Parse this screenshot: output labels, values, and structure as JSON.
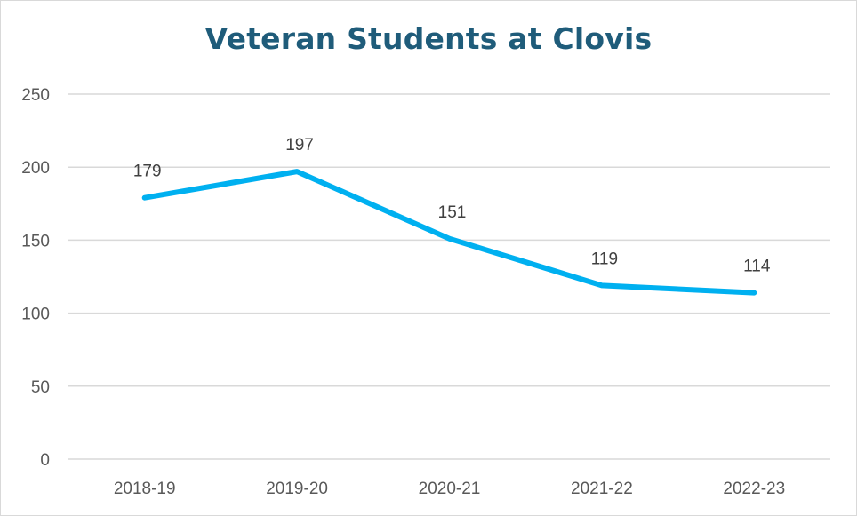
{
  "chart_data": {
    "type": "line",
    "title": "Veteran Students at Clovis",
    "xlabel": "",
    "ylabel": "",
    "categories": [
      "2018-19",
      "2019-20",
      "2020-21",
      "2021-22",
      "2022-23"
    ],
    "series": [
      {
        "values": [
          179,
          197,
          151,
          119,
          114
        ],
        "color": "#00b0f0"
      }
    ],
    "ylim": [
      0,
      250
    ],
    "yticks": [
      0,
      50,
      100,
      150,
      200,
      250
    ],
    "ytick_labels": [
      "0",
      "50",
      "100",
      "150",
      "200",
      "250"
    ],
    "data_labels": [
      "179",
      "197",
      "151",
      "119",
      "114"
    ],
    "grid": true,
    "gridline_color": "#d9d9d9",
    "title_color": "#1f5c7a",
    "legend": "none"
  }
}
